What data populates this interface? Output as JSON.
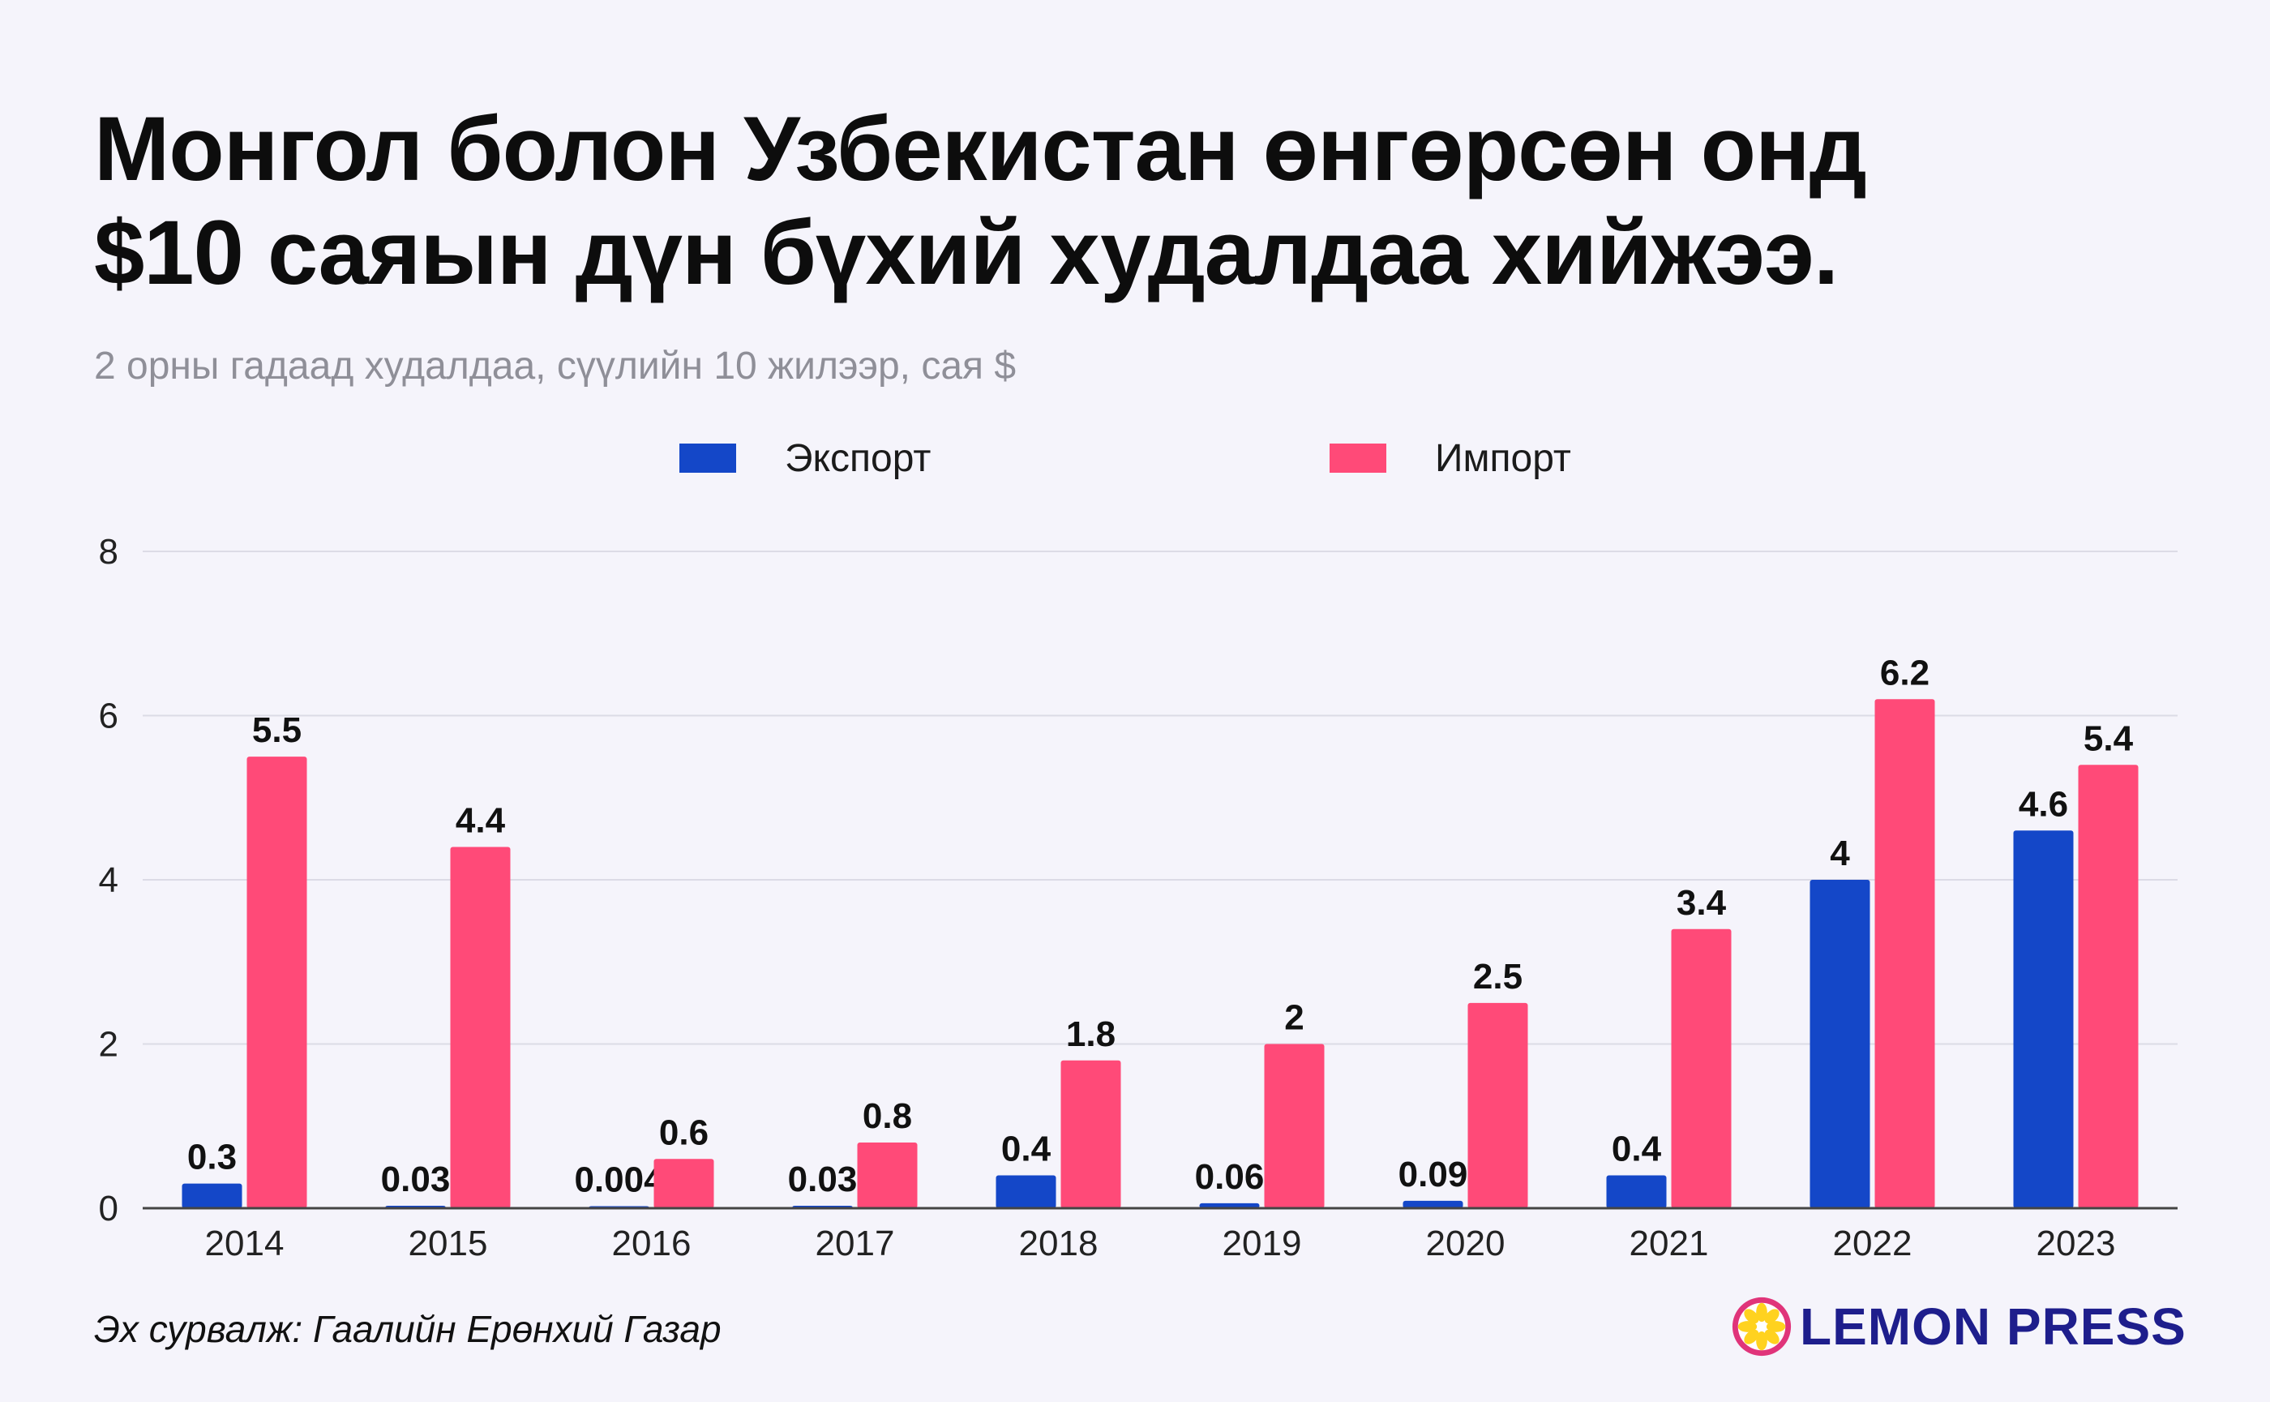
{
  "title": {
    "line1": "Монгол болон Узбекистан өнгөрсөн онд",
    "line2": "$10 саяын дүн бүхий худалдаа хийжээ."
  },
  "subtitle": "2 орны гадаад худалдаа, сүүлийн 10 жилээр, сая $",
  "source": "Эх сурвалж: Гаалийн Ерөнхий Газар",
  "logo": {
    "text": "LEMON PRESS",
    "icon": "lemon-slice-icon"
  },
  "colors": {
    "export": "#1447c8",
    "import": "#ff4a78",
    "grid": "#dcdbe6",
    "axis": "#444444",
    "logo_text": "#1e1e8c",
    "logo_pink": "#e0347a",
    "logo_yellow": "#ffd21f"
  },
  "chart_data": {
    "type": "bar",
    "categories": [
      "2014",
      "2015",
      "2016",
      "2017",
      "2018",
      "2019",
      "2020",
      "2021",
      "2022",
      "2023"
    ],
    "series": [
      {
        "name": "Экспорт",
        "values": [
          0.3,
          0.03,
          0.004,
          0.03,
          0.4,
          0.06,
          0.09,
          0.4,
          4,
          4.6
        ],
        "labels": [
          "0.3",
          "0.03",
          "0.004",
          "0.03",
          "0.4",
          "0.06",
          "0.09",
          "0.4",
          "4",
          "4.6"
        ]
      },
      {
        "name": "Импорт",
        "values": [
          5.5,
          4.4,
          0.6,
          0.8,
          1.8,
          2,
          2.5,
          3.4,
          6.2,
          5.4
        ],
        "labels": [
          "5.5",
          "4.4",
          "0.6",
          "0.8",
          "1.8",
          "2",
          "2.5",
          "3.4",
          "6.2",
          "5.4"
        ]
      }
    ],
    "ylim": [
      0,
      8
    ],
    "yticks": [
      "0",
      "2",
      "4",
      "6",
      "8"
    ],
    "grid": true,
    "legend_position": "top-center"
  }
}
